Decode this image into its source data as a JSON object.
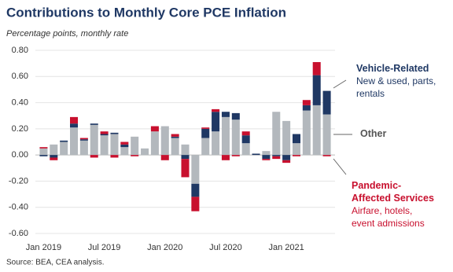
{
  "chart_data": {
    "type": "stacked-bar",
    "title": "Contributions to Monthly Core PCE Inflation",
    "subtitle": "Percentage points, monthly rate",
    "source": "Source: BEA, CEA analysis.",
    "categories": [
      "Jan 2019",
      null,
      null,
      null,
      null,
      null,
      "Jul 2019",
      null,
      null,
      null,
      null,
      null,
      "Jan 2020",
      null,
      null,
      null,
      null,
      null,
      "Jul 2020",
      null,
      null,
      null,
      null,
      null,
      "Jan 2021",
      null,
      null,
      null,
      null
    ],
    "series": [
      {
        "name": "Other",
        "color": "#b3b8bd",
        "values": [
          0.05,
          0.08,
          0.1,
          0.21,
          0.11,
          0.23,
          0.15,
          0.16,
          0.06,
          0.14,
          0.05,
          0.18,
          0.22,
          0.13,
          0.08,
          -0.22,
          0.13,
          0.18,
          0.29,
          0.27,
          0.09,
          0.0,
          0.03,
          0.33,
          0.26,
          0.09,
          0.34,
          0.38,
          0.31
        ]
      },
      {
        "name": "Vehicle-Related",
        "color": "#1f3864",
        "description": "New & used, parts, rentals",
        "values": [
          -0.01,
          -0.02,
          0.01,
          0.03,
          0.01,
          0.01,
          0.01,
          0.01,
          0.02,
          0.0,
          0.0,
          0.0,
          0.0,
          0.01,
          -0.03,
          -0.1,
          0.07,
          0.15,
          0.04,
          0.05,
          0.06,
          0.01,
          -0.03,
          -0.01,
          -0.04,
          0.07,
          0.04,
          0.23,
          0.18
        ]
      },
      {
        "name": "Pandemic-Affected Services",
        "color": "#c8102e",
        "description": "Airfare, hotels, event admissions",
        "values": [
          0.01,
          -0.02,
          0.0,
          0.05,
          0.01,
          -0.02,
          0.02,
          -0.02,
          0.02,
          -0.01,
          0.0,
          0.04,
          -0.04,
          0.02,
          -0.14,
          -0.11,
          0.01,
          0.02,
          -0.04,
          -0.01,
          0.03,
          0.0,
          -0.01,
          -0.02,
          -0.02,
          -0.01,
          0.04,
          0.1,
          -0.01
        ]
      }
    ],
    "ylim": [
      -0.6,
      0.8
    ],
    "yticks": [
      {
        "value": -0.6,
        "label": "-0.60"
      },
      {
        "value": -0.4,
        "label": "-0.40"
      },
      {
        "value": -0.2,
        "label": "-0.20"
      },
      {
        "value": 0,
        "label": "0.00"
      },
      {
        "value": 0.2,
        "label": "0.20"
      },
      {
        "value": 0.4,
        "label": "0.40"
      },
      {
        "value": 0.6,
        "label": "0.60"
      },
      {
        "value": 0.8,
        "label": "0.80"
      }
    ],
    "grid": true
  }
}
